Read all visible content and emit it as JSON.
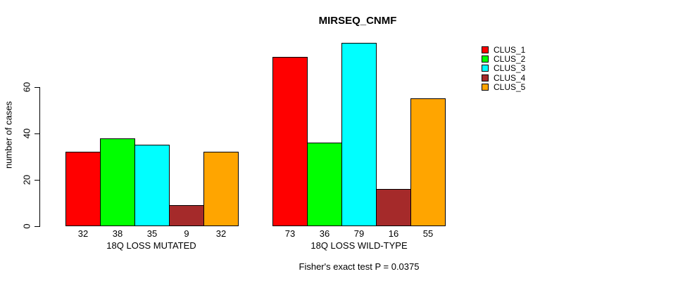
{
  "chart_data": {
    "type": "bar",
    "title": "MIRSEQ_CNMF",
    "ylabel": "number of cases",
    "caption": "Fisher's exact test P = 0.0375",
    "yticks": [
      0,
      20,
      40,
      60
    ],
    "ylim": [
      0,
      80
    ],
    "grid": false,
    "background_color": "#ffffff",
    "legend": {
      "position": "top-right",
      "items": [
        {
          "label": "CLUS_1",
          "color": "#ff0000"
        },
        {
          "label": "CLUS_2",
          "color": "#00ff00"
        },
        {
          "label": "CLUS_3",
          "color": "#00ffff"
        },
        {
          "label": "CLUS_4",
          "color": "#a52a2a"
        },
        {
          "label": "CLUS_5",
          "color": "#ffa500"
        }
      ]
    },
    "groups": [
      {
        "label": "18Q LOSS MUTATED",
        "values": [
          32,
          38,
          35,
          9,
          32
        ]
      },
      {
        "label": "18Q LOSS WILD-TYPE",
        "values": [
          73,
          36,
          79,
          16,
          55
        ]
      }
    ]
  }
}
